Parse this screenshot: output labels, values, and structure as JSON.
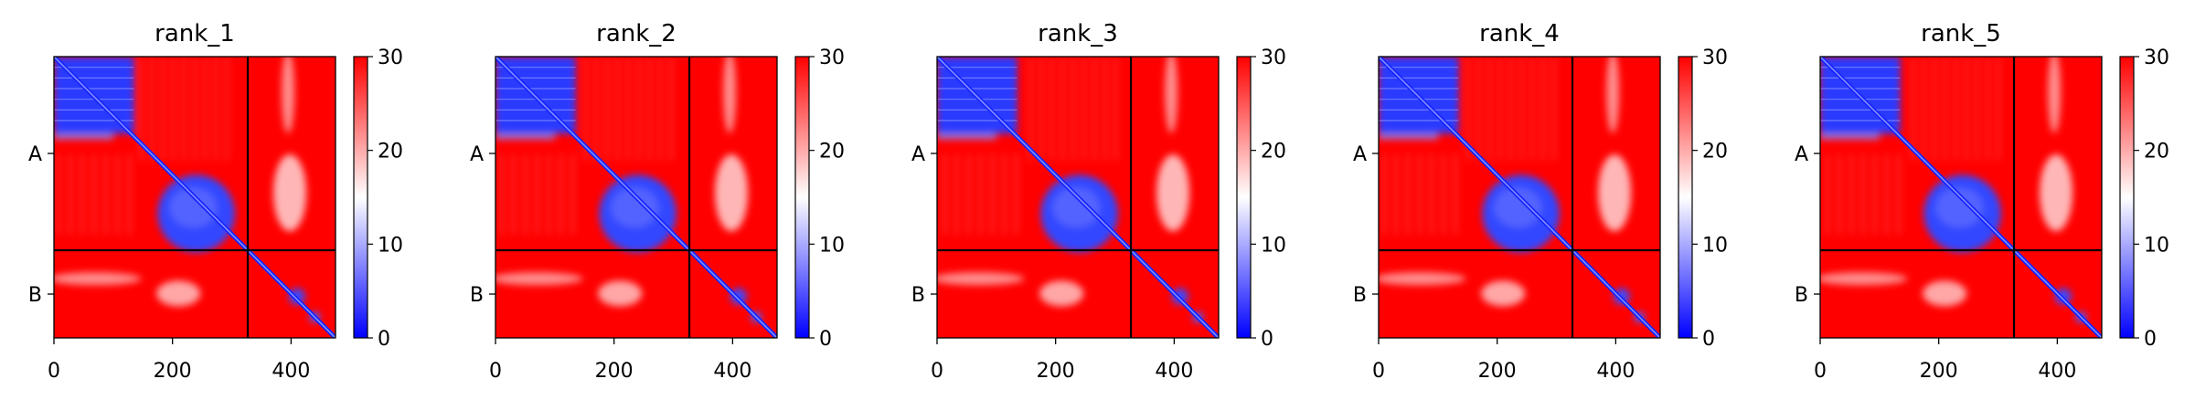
{
  "chart_data": {
    "type": "heatmap",
    "colormap": {
      "name": "bwr",
      "vmin": 0,
      "vmax": 30,
      "ticks": [
        0,
        10,
        20,
        30
      ],
      "colors": [
        "#0000ff",
        "#ffffff",
        "#ff0000"
      ]
    },
    "matrix_size": 475,
    "chain_boundary": 327,
    "chain_a_length": 327,
    "chain_labels": [
      "A",
      "B"
    ],
    "x_ticks": [
      0,
      200,
      400
    ],
    "panels": [
      {
        "title": "rank_1"
      },
      {
        "title": "rank_2"
      },
      {
        "title": "rank_3"
      },
      {
        "title": "rank_4"
      },
      {
        "title": "rank_5"
      }
    ]
  }
}
